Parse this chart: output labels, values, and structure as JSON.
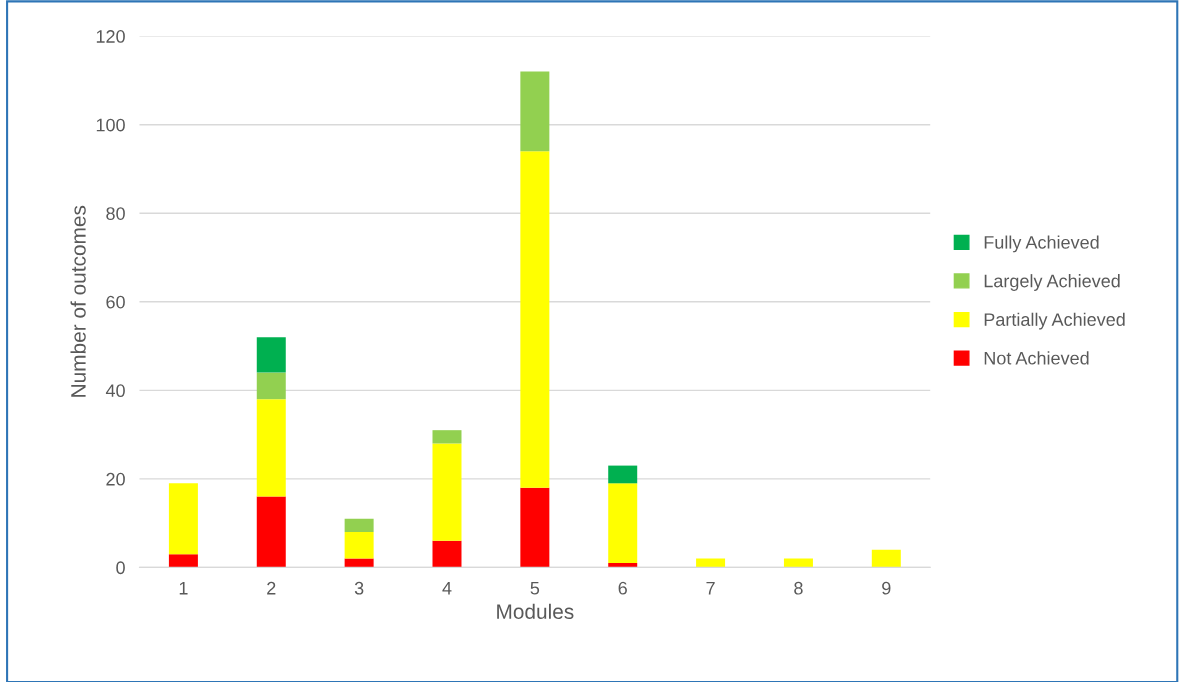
{
  "chart_data": {
    "type": "bar",
    "stacked": true,
    "xlabel": "Modules",
    "ylabel": "Number of outcomes",
    "categories": [
      "1",
      "2",
      "3",
      "4",
      "5",
      "6",
      "7",
      "8",
      "9"
    ],
    "series": [
      {
        "name": "Not Achieved",
        "color": "#ff0000",
        "values": [
          3,
          16,
          2,
          6,
          18,
          1,
          0,
          0,
          0
        ]
      },
      {
        "name": "Partially Achieved",
        "color": "#ffff00",
        "values": [
          16,
          22,
          6,
          22,
          76,
          18,
          2,
          2,
          4
        ]
      },
      {
        "name": "Largely Achieved",
        "color": "#92d050",
        "values": [
          0,
          6,
          3,
          3,
          18,
          0,
          0,
          0,
          0
        ]
      },
      {
        "name": "Fully Achieved",
        "color": "#00b050",
        "values": [
          0,
          8,
          0,
          0,
          0,
          4,
          0,
          0,
          0
        ]
      }
    ],
    "ylim": [
      0,
      120
    ],
    "yticks": [
      0,
      20,
      40,
      60,
      80,
      100,
      120
    ],
    "grid": "y",
    "legend": "right"
  }
}
